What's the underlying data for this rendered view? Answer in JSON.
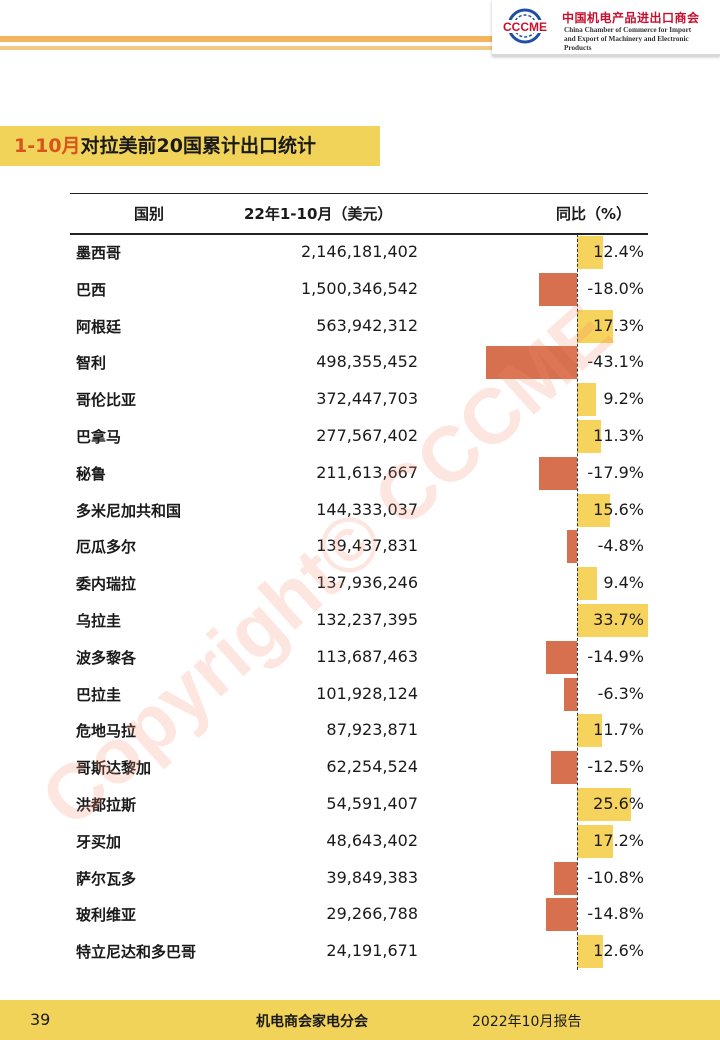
{
  "header": {
    "logo_text": "CCCME",
    "org_name_cn": "中国机电产品进出口商会",
    "org_name_en_line1": "China Chamber of Commerce for Import",
    "org_name_en_line2": "and Export of Machinery and Electronic Products"
  },
  "section_title": {
    "highlight": "1-10月",
    "rest": "对拉美前20国累计出口统计"
  },
  "watermark": "Copyright© CCCME",
  "table": {
    "columns": [
      "国别",
      "22年1-10月（美元）",
      "同比（%）"
    ],
    "rows": [
      {
        "country": "墨西哥",
        "value": "2,146,181,402",
        "yoy": "12.4%"
      },
      {
        "country": "巴西",
        "value": "1,500,346,542",
        "yoy": "-18.0%"
      },
      {
        "country": "阿根廷",
        "value": "563,942,312",
        "yoy": "17.3%"
      },
      {
        "country": "智利",
        "value": "498,355,452",
        "yoy": "-43.1%"
      },
      {
        "country": "哥伦比亚",
        "value": "372,447,703",
        "yoy": "9.2%"
      },
      {
        "country": "巴拿马",
        "value": "277,567,402",
        "yoy": "11.3%"
      },
      {
        "country": "秘鲁",
        "value": "211,613,667",
        "yoy": "-17.9%"
      },
      {
        "country": "多米尼加共和国",
        "value": "144,333,037",
        "yoy": "15.6%"
      },
      {
        "country": "厄瓜多尔",
        "value": "139,437,831",
        "yoy": "-4.8%"
      },
      {
        "country": "委内瑞拉",
        "value": "137,936,246",
        "yoy": "9.4%"
      },
      {
        "country": "乌拉圭",
        "value": "132,237,395",
        "yoy": "33.7%"
      },
      {
        "country": "波多黎各",
        "value": "113,687,463",
        "yoy": "-14.9%"
      },
      {
        "country": "巴拉圭",
        "value": "101,928,124",
        "yoy": "-6.3%"
      },
      {
        "country": "危地马拉",
        "value": "87,923,871",
        "yoy": "11.7%"
      },
      {
        "country": "哥斯达黎加",
        "value": "62,254,524",
        "yoy": "-12.5%"
      },
      {
        "country": "洪都拉斯",
        "value": "54,591,407",
        "yoy": "25.6%"
      },
      {
        "country": "牙买加",
        "value": "48,643,402",
        "yoy": "17.2%"
      },
      {
        "country": "萨尔瓦多",
        "value": "39,849,383",
        "yoy": "-10.8%"
      },
      {
        "country": "玻利维亚",
        "value": "29,266,788",
        "yoy": "-14.8%"
      },
      {
        "country": "特立尼达和多巴哥",
        "value": "24,191,671",
        "yoy": "12.6%"
      }
    ],
    "yoy_values": [
      12.4,
      -18.0,
      17.3,
      -43.1,
      9.2,
      11.3,
      -17.9,
      15.6,
      -4.8,
      9.4,
      33.7,
      -14.9,
      -6.3,
      11.7,
      -12.5,
      25.6,
      17.2,
      -10.8,
      -14.8,
      12.6
    ]
  },
  "colors": {
    "accent_yellow": "#f2d35a",
    "positive_bar": "#f5d35c",
    "negative_bar": "#d6704f",
    "title_highlight": "#d9531e",
    "logo_blue": "#1f4fa3",
    "logo_red": "#c8102e"
  },
  "footer": {
    "page_number": "39",
    "organization": "机电商会家电分会",
    "report": "2022年10月报告"
  }
}
